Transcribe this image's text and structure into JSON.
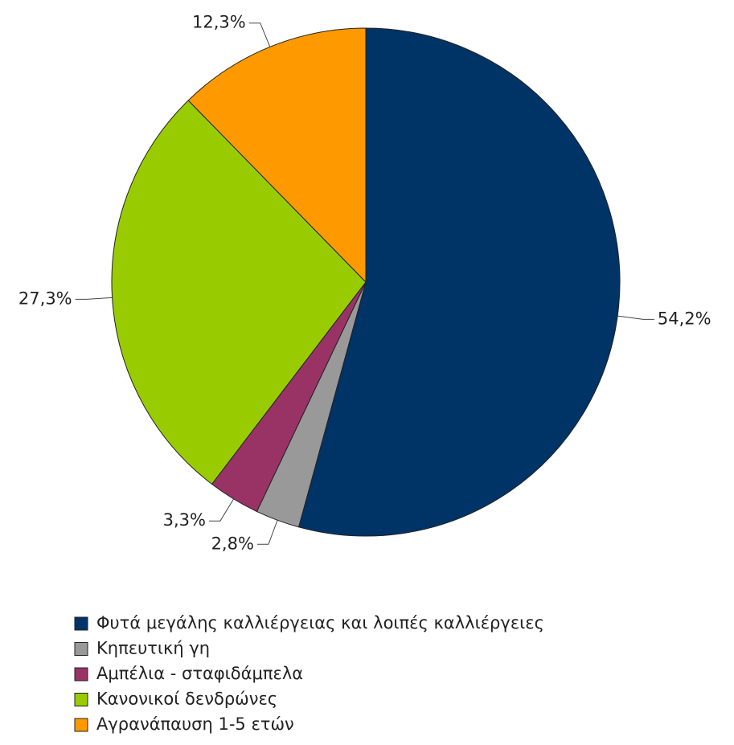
{
  "chart_data": {
    "type": "pie",
    "categories": [
      "Φυτά μεγάλης καλλιέργειας και λοιπές καλλιέργειες",
      "Κηπευτική γη",
      "Αμπέλια - σταφιδάμπελα",
      "Κανονικοί δενδρώνες",
      "Αγρανάπαυση 1-5 ετών"
    ],
    "values": [
      54.2,
      2.8,
      3.3,
      27.3,
      12.3
    ],
    "value_labels": [
      "54,2%",
      "2,8%",
      "3,3%",
      "27,3%",
      "12,3%"
    ],
    "colors": [
      "#003366",
      "#999999",
      "#993366",
      "#99cc00",
      "#ff9900"
    ],
    "legend": "bottom"
  }
}
